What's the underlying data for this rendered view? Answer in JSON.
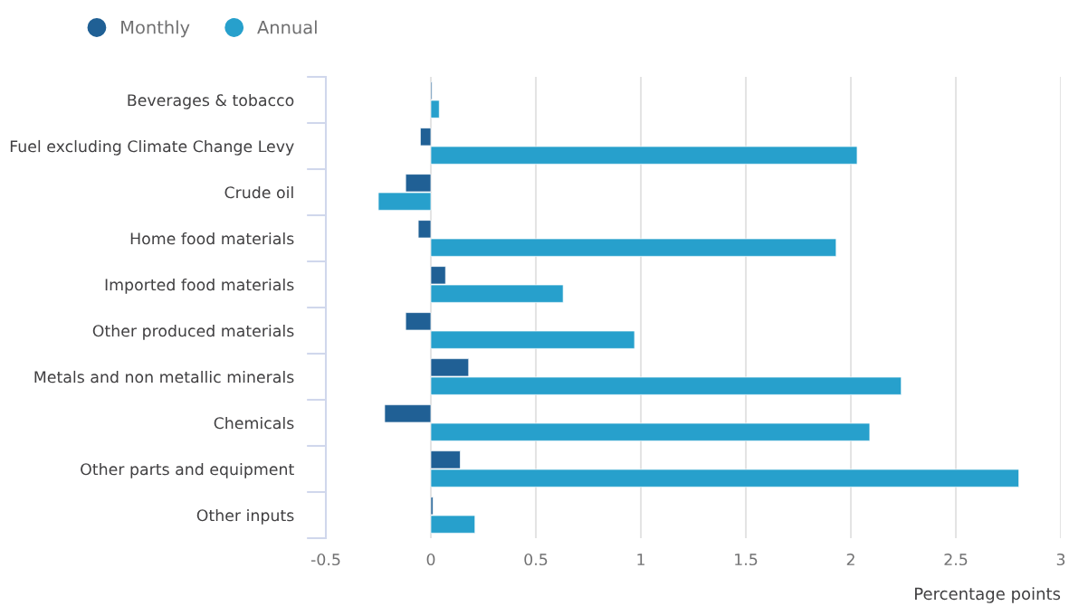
{
  "chart_data": {
    "type": "bar",
    "orientation": "horizontal",
    "xlabel": "Percentage points",
    "categories": [
      "Beverages & tobacco",
      "Fuel excluding Climate Change Levy",
      "Crude oil",
      "Home food materials",
      "Imported food materials",
      "Other produced materials",
      "Metals and non metallic minerals",
      "Chemicals",
      "Other parts and equipment",
      "Other inputs"
    ],
    "series": [
      {
        "name": "Monthly",
        "color": "#206095",
        "values": [
          0.005,
          -0.05,
          -0.12,
          -0.06,
          0.07,
          -0.12,
          0.18,
          -0.22,
          0.14,
          0.01
        ]
      },
      {
        "name": "Annual",
        "color": "#27a0cc",
        "values": [
          0.04,
          2.03,
          -0.25,
          1.93,
          0.63,
          0.97,
          2.24,
          2.09,
          2.8,
          0.21
        ]
      }
    ],
    "xlim": [
      -0.5,
      3
    ],
    "xticks": [
      -0.5,
      0,
      0.5,
      1,
      1.5,
      2,
      2.5,
      3
    ],
    "grid": "x",
    "legend": "top left"
  }
}
